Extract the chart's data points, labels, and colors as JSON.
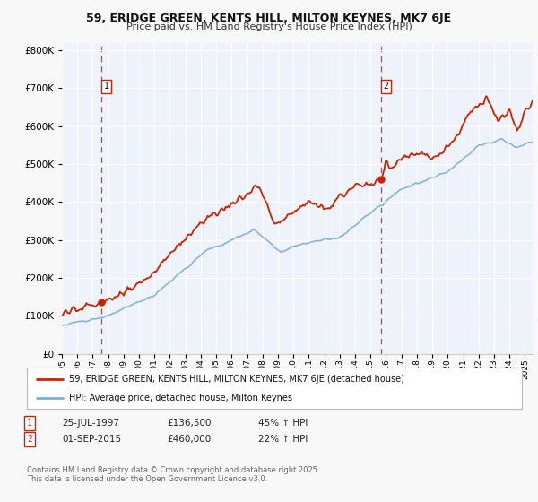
{
  "title1": "59, ERIDGE GREEN, KENTS HILL, MILTON KEYNES, MK7 6JE",
  "title2": "Price paid vs. HM Land Registry's House Price Index (HPI)",
  "legend1": "59, ERIDGE GREEN, KENTS HILL, MILTON KEYNES, MK7 6JE (detached house)",
  "legend2": "HPI: Average price, detached house, Milton Keynes",
  "ann1_label": "1",
  "ann1_date": "25-JUL-1997",
  "ann1_price": "£136,500",
  "ann1_pct": "45% ↑ HPI",
  "ann1_year": 1997.56,
  "ann1_value": 136500,
  "ann2_label": "2",
  "ann2_date": "01-SEP-2015",
  "ann2_price": "£460,000",
  "ann2_pct": "22% ↑ HPI",
  "ann2_year": 2015.67,
  "ann2_value": 460000,
  "footer1": "Contains HM Land Registry data © Crown copyright and database right 2025.",
  "footer2": "This data is licensed under the Open Government Licence v3.0.",
  "bg_color": "#f5f5f5",
  "plot_bg": "#eef2fa",
  "red_color": "#cc2200",
  "blue_color": "#7bafd4",
  "ylim_min": 0,
  "ylim_max": 820000,
  "yticks": [
    0,
    100000,
    200000,
    300000,
    400000,
    500000,
    600000,
    700000,
    800000
  ],
  "xlim_min": 1995,
  "xlim_max": 2025.5
}
